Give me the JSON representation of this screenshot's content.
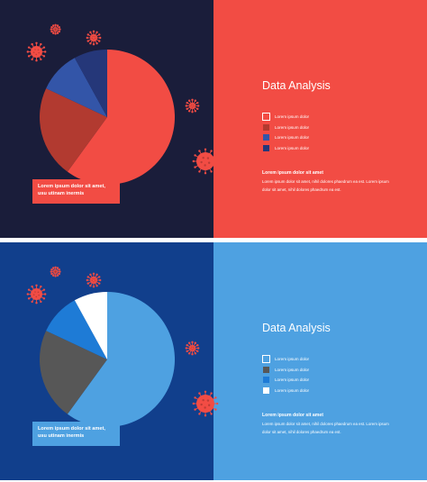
{
  "slides": [
    {
      "title": "Data Analysis",
      "legend": [
        {
          "label": "Lorem ipsum dolor"
        },
        {
          "label": "Lorem ipsum dolor"
        },
        {
          "label": "Lorem ipsum dolor"
        },
        {
          "label": "Lorem ipsum dolor"
        }
      ],
      "callout": "Lorem ipsum dolor sit amet, usu utinam inermis",
      "subheading": "Lorem ipsum dolor sit amet",
      "body": "Lorem ipsum dolor sit amet, nihil dolores phaedrum ea est. Lorem ipsum dolor sit amet, nihil dolores phaedrum ea est.",
      "colors": {
        "left_bg": "#1a1d3a",
        "right_bg": "#f24c44",
        "callout_bg": "#f24c44",
        "virus": "#f24c44",
        "swatches": [
          "#f24c44",
          "#b23a30",
          "#3355a8",
          "#253779"
        ]
      }
    },
    {
      "title": "Data Analysis",
      "legend": [
        {
          "label": "Lorem ipsum dolor"
        },
        {
          "label": "Lorem ipsum dolor"
        },
        {
          "label": "Lorem ipsum dolor"
        },
        {
          "label": "Lorem ipsum dolor"
        }
      ],
      "callout": "Lorem ipsum dolor sit amet, usu utinam inermis",
      "subheading": "Lorem ipsum dolor sit amet",
      "body": "Lorem ipsum dolor sit amet, nihil dolores phaedrum ea est. Lorem ipsum dolor sit amet, nihil dolores phaedrum ea est.",
      "colors": {
        "left_bg": "#113f8c",
        "right_bg": "#4ea1e1",
        "callout_bg": "#4ea1e1",
        "virus": "#f24c44",
        "swatches": [
          "#4ea1e1",
          "#575757",
          "#1e7bd6",
          "#ffffff"
        ]
      }
    }
  ],
  "chart_data": [
    {
      "type": "pie",
      "slices": [
        {
          "legend_index": 0,
          "value": 60,
          "color": "#f24c44"
        },
        {
          "legend_index": 1,
          "value": 22,
          "color": "#b23a30"
        },
        {
          "legend_index": 2,
          "value": 10,
          "color": "#3355a8"
        },
        {
          "legend_index": 3,
          "value": 8,
          "color": "#253779"
        }
      ]
    },
    {
      "type": "pie",
      "slices": [
        {
          "legend_index": 0,
          "value": 60,
          "color": "#4ea1e1"
        },
        {
          "legend_index": 1,
          "value": 22,
          "color": "#575757"
        },
        {
          "legend_index": 2,
          "value": 10,
          "color": "#1e7bd6"
        },
        {
          "legend_index": 3,
          "value": 8,
          "color": "#ffffff"
        }
      ]
    }
  ]
}
